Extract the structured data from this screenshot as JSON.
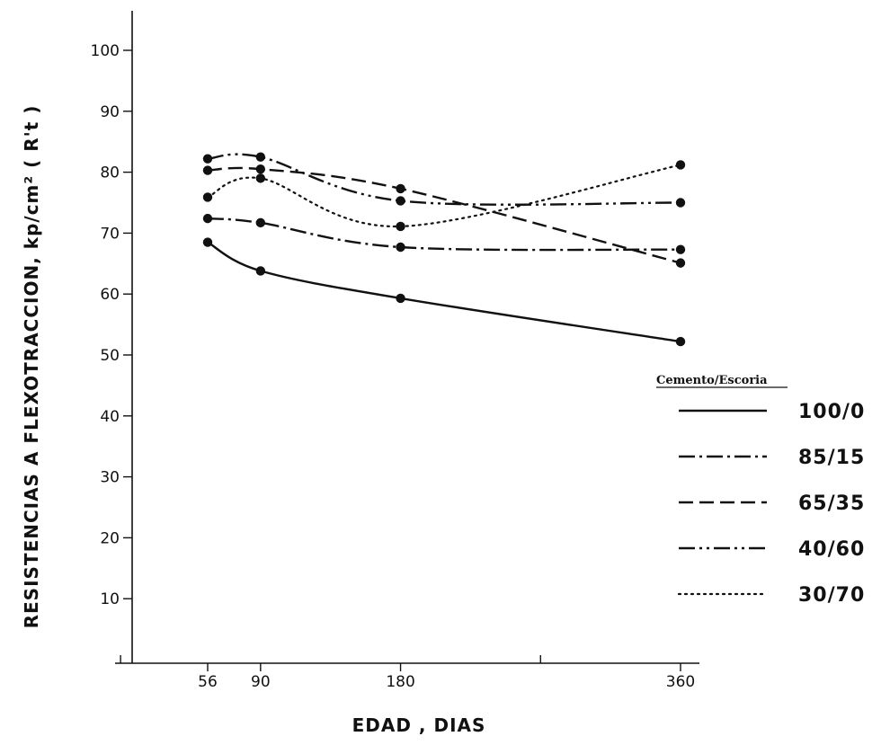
{
  "chart_data": {
    "type": "line",
    "xlabel": "EDAD , DIAS",
    "ylabel": "RESISTENCIAS A FLEXOTRACCION, kp/cm² ( R't )",
    "x_ticks": [
      56,
      90,
      180,
      360
    ],
    "y_ticks": [
      10,
      20,
      30,
      40,
      50,
      60,
      70,
      80,
      90,
      100
    ],
    "xlim": [
      0,
      400
    ],
    "ylim": [
      -10,
      110
    ],
    "legend_title": "Cemento/Escoria",
    "legend_position": "right",
    "series": [
      {
        "name": "100/0",
        "dash": "solid",
        "x": [
          56,
          90,
          180,
          360
        ],
        "y": [
          68.5,
          63.8,
          59.3,
          52.2
        ]
      },
      {
        "name": "85/15",
        "dash": "dashdot",
        "x": [
          56,
          90,
          180,
          360
        ],
        "y": [
          72.4,
          71.7,
          67.7,
          67.3
        ]
      },
      {
        "name": "65/35",
        "dash": "dashed",
        "x": [
          56,
          90,
          180,
          360
        ],
        "y": [
          80.3,
          80.5,
          77.3,
          65.1
        ]
      },
      {
        "name": "40/60",
        "dash": "dashdotdot",
        "x": [
          56,
          90,
          180,
          360
        ],
        "y": [
          82.2,
          82.5,
          75.3,
          75.0
        ]
      },
      {
        "name": "30/70",
        "dash": "dotted",
        "x": [
          56,
          90,
          180,
          360
        ],
        "y": [
          75.9,
          79.0,
          71.1,
          81.2
        ]
      }
    ]
  }
}
